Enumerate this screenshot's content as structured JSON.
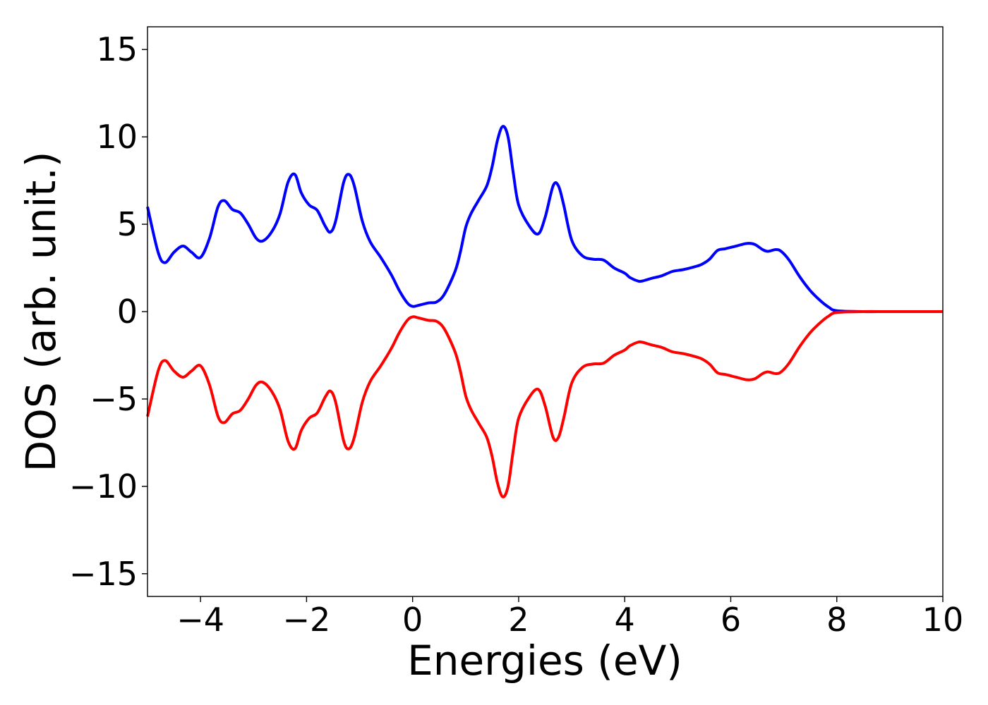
{
  "chart_data": {
    "type": "line",
    "title": "",
    "xlabel": "Energies (eV)",
    "ylabel": "DOS (arb. unit.)",
    "xlim": [
      -5,
      10
    ],
    "ylim": [
      -16.3,
      16.3
    ],
    "xticks": [
      -4,
      -2,
      0,
      2,
      4,
      6,
      8,
      10
    ],
    "yticks": [
      -15,
      -10,
      -5,
      0,
      5,
      10,
      15
    ],
    "xtick_labels": [
      "−4",
      "−2",
      "0",
      "2",
      "4",
      "6",
      "8",
      "10"
    ],
    "ytick_labels": [
      "−15",
      "−10",
      "−5",
      "0",
      "5",
      "10",
      "15"
    ],
    "grid": false,
    "legend": "none",
    "series": [
      {
        "color": "#0000ff",
        "x": [
          -5.0,
          -4.8,
          -4.67,
          -4.5,
          -4.33,
          -4.17,
          -4.0,
          -3.83,
          -3.67,
          -3.55,
          -3.4,
          -3.25,
          -3.1,
          -2.95,
          -2.82,
          -2.65,
          -2.5,
          -2.35,
          -2.22,
          -2.1,
          -1.95,
          -1.8,
          -1.65,
          -1.55,
          -1.45,
          -1.3,
          -1.2,
          -1.1,
          -0.95,
          -0.8,
          -0.6,
          -0.4,
          -0.25,
          -0.1,
          0.0,
          0.1,
          0.3,
          0.45,
          0.6,
          0.8,
          0.9,
          1.0,
          1.1,
          1.25,
          1.4,
          1.5,
          1.6,
          1.7,
          1.8,
          1.9,
          2.0,
          2.2,
          2.37,
          2.5,
          2.65,
          2.75,
          2.85,
          3.0,
          3.2,
          3.4,
          3.6,
          3.8,
          4.0,
          4.1,
          4.25,
          4.33,
          4.5,
          4.7,
          4.9,
          5.1,
          5.3,
          5.45,
          5.6,
          5.75,
          5.9,
          6.1,
          6.3,
          6.45,
          6.6,
          6.7,
          6.85,
          6.95,
          7.1,
          7.3,
          7.5,
          7.7,
          7.85,
          8.0,
          8.5,
          9.0,
          10.0
        ],
        "values": [
          6.0,
          3.4,
          2.8,
          3.4,
          3.75,
          3.4,
          3.1,
          4.2,
          6.0,
          6.35,
          5.85,
          5.65,
          5.0,
          4.2,
          4.05,
          4.6,
          5.6,
          7.4,
          7.85,
          6.8,
          6.1,
          5.8,
          4.9,
          4.55,
          5.2,
          7.4,
          7.85,
          7.2,
          5.2,
          4.0,
          3.1,
          2.1,
          1.2,
          0.5,
          0.3,
          0.35,
          0.5,
          0.55,
          1.0,
          2.3,
          3.4,
          4.8,
          5.6,
          6.4,
          7.2,
          8.3,
          9.8,
          10.6,
          10.0,
          7.9,
          6.1,
          4.9,
          4.45,
          5.4,
          7.2,
          7.2,
          6.1,
          4.1,
          3.2,
          3.0,
          2.95,
          2.5,
          2.2,
          1.95,
          1.75,
          1.75,
          1.9,
          2.05,
          2.3,
          2.4,
          2.55,
          2.7,
          3.0,
          3.5,
          3.6,
          3.75,
          3.9,
          3.85,
          3.55,
          3.45,
          3.55,
          3.45,
          2.95,
          2.0,
          1.2,
          0.6,
          0.25,
          0.05,
          0.0,
          0.0,
          0.0
        ]
      },
      {
        "color": "#ff0000",
        "x": [
          -5.0,
          -4.8,
          -4.67,
          -4.5,
          -4.33,
          -4.17,
          -4.0,
          -3.83,
          -3.67,
          -3.55,
          -3.4,
          -3.25,
          -3.1,
          -2.95,
          -2.82,
          -2.65,
          -2.5,
          -2.35,
          -2.22,
          -2.1,
          -1.95,
          -1.8,
          -1.65,
          -1.55,
          -1.45,
          -1.3,
          -1.2,
          -1.1,
          -0.95,
          -0.8,
          -0.6,
          -0.4,
          -0.25,
          -0.1,
          0.0,
          0.1,
          0.3,
          0.45,
          0.6,
          0.8,
          0.9,
          1.0,
          1.1,
          1.25,
          1.4,
          1.5,
          1.6,
          1.7,
          1.8,
          1.9,
          2.0,
          2.2,
          2.37,
          2.5,
          2.65,
          2.75,
          2.85,
          3.0,
          3.2,
          3.4,
          3.6,
          3.8,
          4.0,
          4.1,
          4.25,
          4.33,
          4.5,
          4.7,
          4.9,
          5.1,
          5.3,
          5.45,
          5.6,
          5.75,
          5.9,
          6.1,
          6.3,
          6.45,
          6.6,
          6.7,
          6.85,
          6.95,
          7.1,
          7.3,
          7.5,
          7.7,
          7.85,
          8.0,
          8.5,
          9.0,
          10.0
        ],
        "values": [
          -6.0,
          -3.4,
          -2.8,
          -3.4,
          -3.75,
          -3.4,
          -3.1,
          -4.2,
          -6.0,
          -6.35,
          -5.85,
          -5.65,
          -5.0,
          -4.2,
          -4.05,
          -4.6,
          -5.6,
          -7.4,
          -7.85,
          -6.8,
          -6.1,
          -5.8,
          -4.9,
          -4.55,
          -5.2,
          -7.4,
          -7.85,
          -7.2,
          -5.2,
          -4.0,
          -3.1,
          -2.1,
          -1.2,
          -0.5,
          -0.3,
          -0.35,
          -0.5,
          -0.55,
          -1.0,
          -2.3,
          -3.4,
          -4.8,
          -5.6,
          -6.4,
          -7.2,
          -8.3,
          -9.8,
          -10.6,
          -10.0,
          -7.9,
          -6.1,
          -4.9,
          -4.45,
          -5.4,
          -7.2,
          -7.2,
          -6.1,
          -4.1,
          -3.2,
          -3.0,
          -2.95,
          -2.5,
          -2.2,
          -1.95,
          -1.75,
          -1.75,
          -1.9,
          -2.05,
          -2.3,
          -2.4,
          -2.55,
          -2.7,
          -3.0,
          -3.5,
          -3.6,
          -3.75,
          -3.9,
          -3.85,
          -3.55,
          -3.45,
          -3.55,
          -3.45,
          -2.95,
          -2.0,
          -1.2,
          -0.6,
          -0.25,
          -0.05,
          0.0,
          0.0,
          0.0
        ]
      }
    ]
  }
}
